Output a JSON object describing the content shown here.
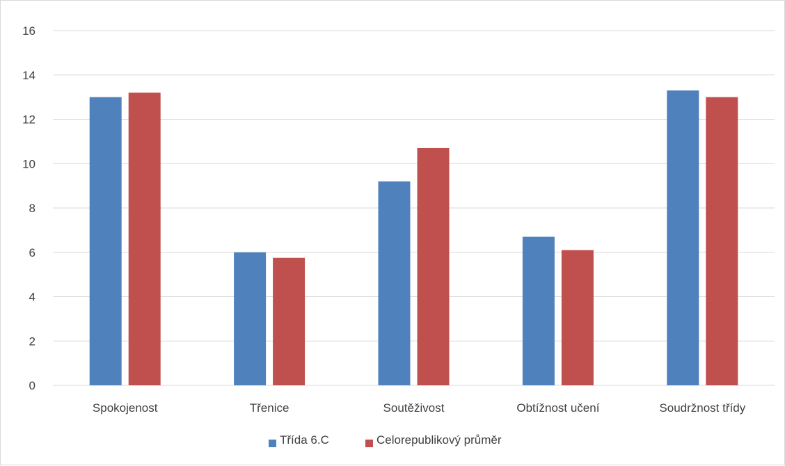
{
  "chart_data": {
    "type": "bar",
    "title": "",
    "xlabel": "",
    "ylabel": "",
    "categories": [
      "Spokojenost",
      "Třenice",
      "Soutěživost",
      "Obtížnost učení",
      "Soudržnost třídy"
    ],
    "series": [
      {
        "name": "Třída 6.C",
        "color": "#4f81bd",
        "values": [
          13.0,
          6.0,
          9.2,
          6.7,
          13.3
        ]
      },
      {
        "name": "Celorepublikový průměr",
        "color": "#c0504d",
        "values": [
          13.2,
          5.75,
          10.7,
          6.1,
          13.0
        ]
      }
    ],
    "ylim": [
      0,
      16
    ],
    "yticks": [
      "0",
      "2",
      "4",
      "6",
      "8",
      "10",
      "12",
      "14",
      "16"
    ],
    "grid": true,
    "legend_position": "bottom",
    "gridline_color": "#d9d9d9"
  }
}
